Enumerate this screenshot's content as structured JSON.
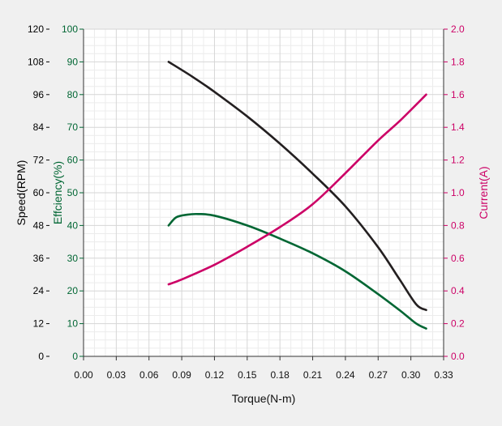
{
  "chart_data": {
    "type": "line",
    "title": "",
    "xlabel": "Torque(N-m)",
    "xlim": [
      0,
      0.33
    ],
    "x_ticks": [
      "0.00",
      "0.03",
      "0.06",
      "0.09",
      "0.12",
      "0.15",
      "0.18",
      "0.21",
      "0.24",
      "0.27",
      "0.30",
      "0.33"
    ],
    "axes": {
      "speed": {
        "label": "Speed(RPM)",
        "color": "#000000",
        "lim": [
          0,
          120
        ],
        "ticks": [
          "0",
          "12",
          "24",
          "36",
          "48",
          "60",
          "72",
          "84",
          "96",
          "108",
          "120"
        ]
      },
      "efficiency": {
        "label": "Effciency(%)",
        "color": "#006633",
        "lim": [
          0,
          100
        ],
        "ticks": [
          "0",
          "10",
          "20",
          "30",
          "40",
          "50",
          "60",
          "70",
          "80",
          "90",
          "100"
        ]
      },
      "current": {
        "label": "Current(A)",
        "color": "#cc0066",
        "lim": [
          0,
          2.0
        ],
        "ticks": [
          "0.0",
          "0.2",
          "0.4",
          "0.6",
          "0.8",
          "1.0",
          "1.2",
          "1.4",
          "1.6",
          "1.8",
          "2.0"
        ]
      }
    },
    "grid": true,
    "series": [
      {
        "axis": "speed",
        "color": "#231f20",
        "x": [
          0.078,
          0.1,
          0.12,
          0.15,
          0.18,
          0.21,
          0.24,
          0.27,
          0.29,
          0.305,
          0.314
        ],
        "y": [
          108,
          102.5,
          97,
          88,
          78,
          67,
          55,
          40,
          28,
          19,
          17
        ]
      },
      {
        "axis": "efficiency",
        "color": "#006633",
        "x": [
          0.078,
          0.085,
          0.095,
          0.105,
          0.12,
          0.15,
          0.18,
          0.21,
          0.24,
          0.27,
          0.29,
          0.305,
          0.314
        ],
        "y": [
          40,
          42.5,
          43.3,
          43.5,
          43,
          40,
          36,
          31.5,
          26,
          19,
          14,
          10,
          8.5
        ]
      },
      {
        "axis": "current",
        "color": "#cc0066",
        "x": [
          0.078,
          0.09,
          0.12,
          0.15,
          0.18,
          0.21,
          0.24,
          0.27,
          0.29,
          0.314
        ],
        "y": [
          0.44,
          0.47,
          0.56,
          0.67,
          0.79,
          0.93,
          1.12,
          1.32,
          1.44,
          1.6
        ]
      }
    ]
  }
}
